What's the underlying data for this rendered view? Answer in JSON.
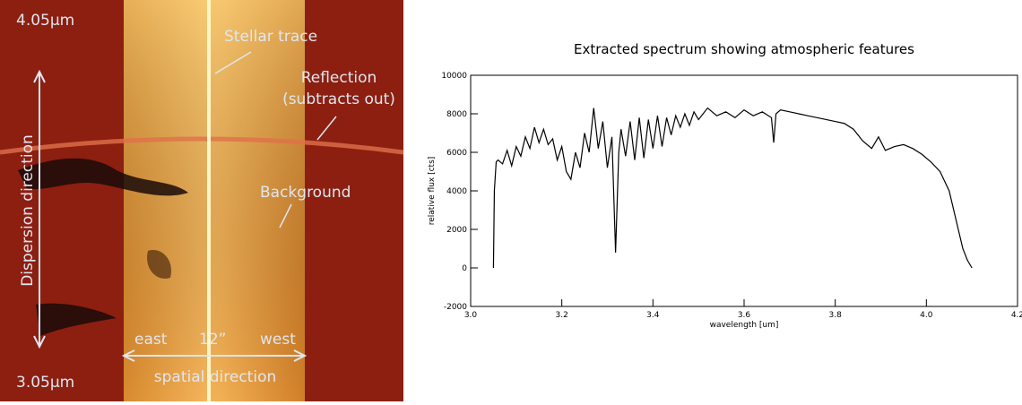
{
  "image": {
    "labels": {
      "top_wavelength": "4.05µm",
      "bottom_wavelength": "3.05µm",
      "stellar_trace": "Stellar trace",
      "reflection": [
        "Reflection",
        "(subtracts out)"
      ],
      "background": "Background",
      "dispersion": "Dispersion direction",
      "east": "east",
      "width": "12”",
      "west": "west",
      "spatial": "spatial direction"
    }
  },
  "chart_data": {
    "type": "line",
    "title": "Extracted spectrum showing atmospheric features",
    "xlabel": "wavelength [um]",
    "ylabel": "relative flux [cts]",
    "xlim": [
      3.0,
      4.2
    ],
    "xticks": [
      {
        "value": 3,
        "label": "3.0"
      },
      3.2,
      3.4,
      3.6,
      3.8,
      {
        "value": 4,
        "label": "4.0"
      },
      4.2
    ],
    "ylim": [
      -2000,
      10000
    ],
    "yticks": [
      -2000,
      0,
      2000,
      4000,
      6000,
      8000,
      10000
    ],
    "series": [
      {
        "color": "#000000",
        "x": [
          3.05,
          3.052,
          3.056,
          3.06,
          3.07,
          3.08,
          3.09,
          3.1,
          3.11,
          3.12,
          3.13,
          3.14,
          3.15,
          3.16,
          3.17,
          3.18,
          3.19,
          3.2,
          3.21,
          3.22,
          3.23,
          3.24,
          3.25,
          3.26,
          3.27,
          3.28,
          3.29,
          3.3,
          3.31,
          3.318,
          3.325,
          3.33,
          3.34,
          3.35,
          3.36,
          3.37,
          3.38,
          3.39,
          3.4,
          3.41,
          3.42,
          3.43,
          3.44,
          3.45,
          3.46,
          3.47,
          3.48,
          3.49,
          3.5,
          3.52,
          3.54,
          3.56,
          3.58,
          3.6,
          3.62,
          3.64,
          3.66,
          3.665,
          3.67,
          3.68,
          3.7,
          3.72,
          3.74,
          3.76,
          3.78,
          3.8,
          3.82,
          3.84,
          3.86,
          3.88,
          3.895,
          3.91,
          3.93,
          3.95,
          3.97,
          3.99,
          4.01,
          4.03,
          4.05,
          4.06,
          4.07,
          4.08,
          4.09,
          4.1
        ],
        "values": [
          0,
          4000,
          5500,
          5600,
          5400,
          6100,
          5300,
          6300,
          5800,
          6800,
          6200,
          7300,
          6500,
          7200,
          6400,
          6700,
          5600,
          6300,
          5000,
          4600,
          6000,
          5200,
          7000,
          6000,
          8300,
          6200,
          7600,
          5200,
          6800,
          800,
          6000,
          7200,
          5800,
          7600,
          5600,
          7800,
          5700,
          7700,
          6200,
          7900,
          6300,
          7800,
          6900,
          7900,
          7300,
          8000,
          7400,
          8100,
          7700,
          8300,
          7900,
          8100,
          7800,
          8200,
          7900,
          8100,
          7800,
          6500,
          8000,
          8200,
          8100,
          8000,
          7900,
          7800,
          7700,
          7600,
          7500,
          7200,
          6600,
          6200,
          6800,
          6100,
          6300,
          6400,
          6200,
          5900,
          5500,
          5000,
          4000,
          3000,
          2000,
          1000,
          400,
          0
        ]
      }
    ]
  }
}
